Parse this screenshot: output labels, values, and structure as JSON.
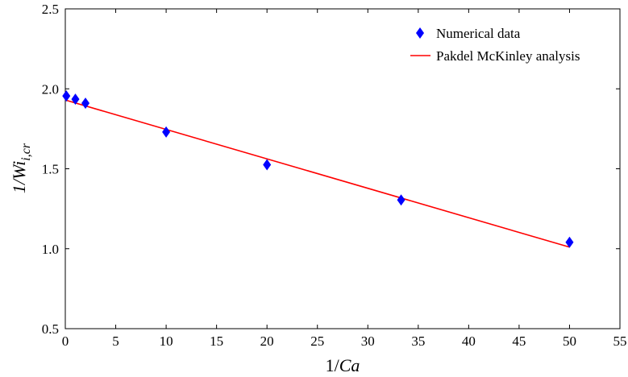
{
  "chart_data": {
    "type": "scatter",
    "xlabel_prefix": "1/",
    "xlabel_var": "Ca",
    "ylabel_prefix": "1/",
    "ylabel_var": "Wi",
    "ylabel_sub": "i,cr",
    "xlim": [
      0,
      55
    ],
    "ylim": [
      0.5,
      2.5
    ],
    "x_ticks": [
      0,
      5,
      10,
      15,
      20,
      25,
      30,
      35,
      40,
      45,
      50,
      55
    ],
    "y_ticks": [
      0.5,
      1.0,
      1.5,
      2.0,
      2.5
    ],
    "x_tick_labels": [
      "0",
      "5",
      "10",
      "15",
      "20",
      "25",
      "30",
      "35",
      "40",
      "45",
      "50",
      "55"
    ],
    "y_tick_labels": [
      "0.5",
      "1.0",
      "1.5",
      "2.0",
      "2.5"
    ],
    "grid": false,
    "legend_position": "top-right",
    "series": [
      {
        "name": "Numerical data",
        "kind": "scatter",
        "marker": "diamond",
        "color": "#0000ff",
        "x": [
          0.1,
          1,
          2,
          10,
          20,
          33.3,
          50
        ],
        "y": [
          1.955,
          1.935,
          1.91,
          1.73,
          1.525,
          1.305,
          1.04
        ]
      },
      {
        "name": "Pakdel McKinley analysis",
        "kind": "line",
        "color": "#ff0000",
        "x": [
          0,
          50
        ],
        "y": [
          1.93,
          1.01
        ]
      }
    ]
  }
}
